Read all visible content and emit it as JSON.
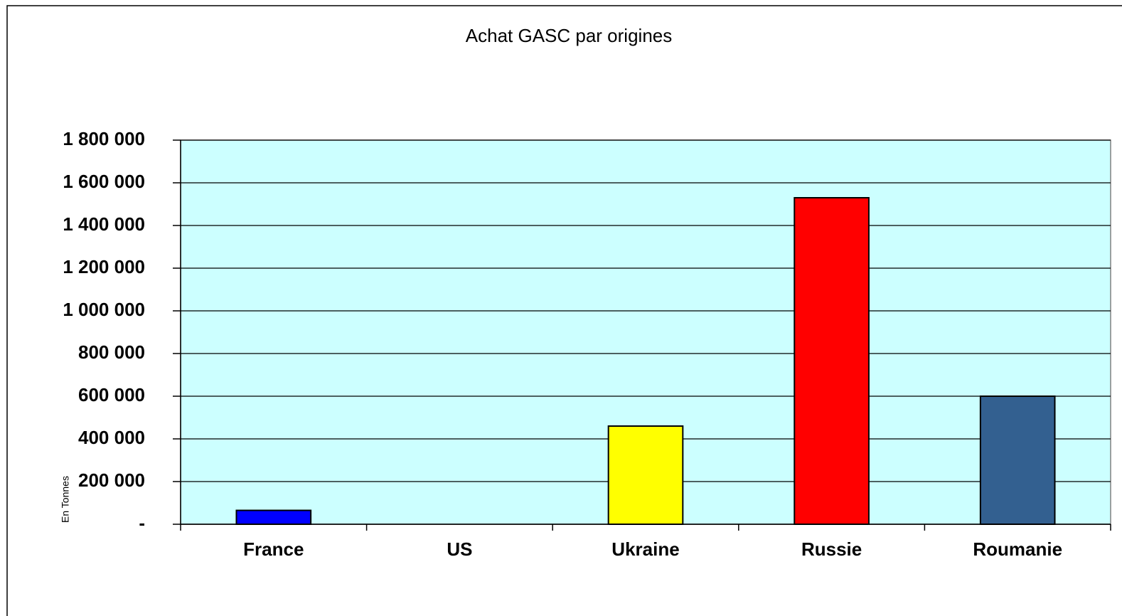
{
  "chart_data": {
    "type": "bar",
    "title": "Achat GASC par origines",
    "y_label": "En Tonnes",
    "categories": [
      "France",
      "US",
      "Ukraine",
      "Russie",
      "Roumanie"
    ],
    "values": [
      65000,
      0,
      460000,
      1530000,
      600000
    ],
    "colors": [
      "#0000ff",
      null,
      "#ffff00",
      "#ff0000",
      "#336090"
    ],
    "ylim": [
      0,
      1800000
    ],
    "yticks": [
      {
        "value": 0,
        "label": "-"
      },
      {
        "value": 200000,
        "label": "200 000"
      },
      {
        "value": 400000,
        "label": "400 000"
      },
      {
        "value": 600000,
        "label": "600 000"
      },
      {
        "value": 800000,
        "label": "800 000"
      },
      {
        "value": 1000000,
        "label": "1 000 000"
      },
      {
        "value": 1200000,
        "label": "1 200 000"
      },
      {
        "value": 1400000,
        "label": "1 400 000"
      },
      {
        "value": 1600000,
        "label": "1 600 000"
      },
      {
        "value": 1800000,
        "label": "1 800 000"
      }
    ],
    "grid": true,
    "plot_background": "#ccffff"
  }
}
